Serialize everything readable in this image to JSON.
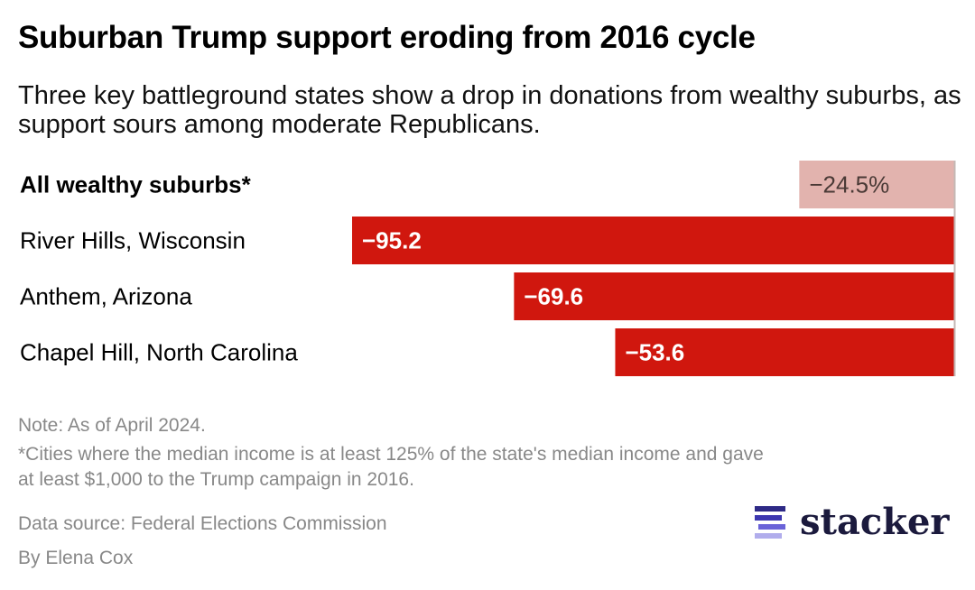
{
  "title": "Suburban Trump support eroding from 2016 cycle",
  "subtitle": "Three key battleground states show a drop in donations from wealthy suburbs, as support sours among moderate Republicans.",
  "chart_data": {
    "type": "bar",
    "orientation": "horizontal",
    "categories": [
      "All wealthy suburbs*",
      "River Hills, Wisconsin",
      "Anthem, Arizona",
      "Chapel Hill, North Carolina"
    ],
    "values": [
      -24.5,
      -95.2,
      -69.6,
      -53.6
    ],
    "labels": [
      "−24.5%",
      "−95.2",
      "−69.6",
      "−53.6"
    ],
    "highlight_first_category_bold": true,
    "colors": [
      "#e2b3ae",
      "#d0170e",
      "#d0170e",
      "#d0170e"
    ],
    "label_colors": [
      "#4a3a36",
      "#ffffff",
      "#ffffff",
      "#ffffff"
    ],
    "xlim": [
      -95.2,
      0
    ],
    "grid": false
  },
  "notes": {
    "note": "Note: As of April 2024.",
    "footnote_line1": "*Cities where the median income is at least 125% of the state's median income and gave",
    "footnote_line2": "at least $1,000 to the Trump campaign in 2016.",
    "source": "Data source: Federal Elections Commission",
    "byline": "By Elena Cox"
  },
  "logo": {
    "text": "stacker",
    "color": "#1b1a3d",
    "accent": "#4b44c8"
  }
}
